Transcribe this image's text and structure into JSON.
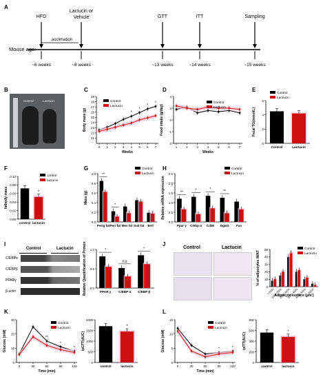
{
  "panel_letters": [
    "A",
    "B",
    "C",
    "D",
    "E",
    "F",
    "G",
    "H",
    "I",
    "J",
    "K",
    "L"
  ],
  "timeline": {
    "stages": [
      "HFD",
      "Lactucin or\nVehicle",
      "GTT",
      "ITT",
      "Sampling"
    ],
    "acclimation": "acclimation",
    "axis_label": "Mouse age:",
    "ages": [
      "~6 weeks",
      "~8 weeks",
      "~13 weeks",
      "~14 weeks",
      "~15 weeks"
    ]
  },
  "photo": {
    "labels": [
      "Control",
      "Lactucin"
    ]
  },
  "colors": {
    "control": "#000000",
    "lactucin": "#cc1111",
    "shade": "#f4c6dc"
  },
  "chart_data": [
    {
      "id": "C",
      "type": "line",
      "ylabel": "Body mass (g)",
      "xlabel": "Weeks",
      "x": [
        0,
        1,
        2,
        3,
        4,
        5,
        6,
        7
      ],
      "ylim": [
        20,
        29
      ],
      "yticks": [
        21,
        22,
        23,
        24,
        25,
        26,
        27,
        28,
        29
      ],
      "series": [
        {
          "name": "Control",
          "values": [
            22.6,
            23.1,
            23.8,
            24.6,
            25.2,
            25.9,
            26.6,
            27.1
          ]
        },
        {
          "name": "Lactucin",
          "values": [
            22.3,
            22.7,
            23.1,
            23.5,
            23.9,
            24.5,
            24.9,
            25.3
          ]
        }
      ],
      "legend": [
        "Control",
        "Lactucin"
      ],
      "stars": [
        "*",
        "*",
        "*",
        "*"
      ]
    },
    {
      "id": "D",
      "type": "line",
      "ylabel": "Food intake (g/day)",
      "xlabel": "Weeks",
      "x": [
        1,
        2,
        3,
        4,
        5,
        6,
        7
      ],
      "ylim": [
        0,
        4
      ],
      "yticks": [
        0,
        1,
        2,
        3,
        4
      ],
      "series": [
        {
          "name": "Control",
          "values": [
            2.9,
            3.1,
            2.6,
            2.8,
            2.7,
            2.8,
            2.6
          ]
        },
        {
          "name": "Lactucin",
          "values": [
            3.2,
            3.0,
            2.9,
            3.1,
            3.0,
            3.0,
            2.9
          ]
        }
      ],
      "legend": [
        "Control",
        "Lactucin"
      ]
    },
    {
      "id": "E",
      "type": "bar",
      "ylabel": "Fecal TG(mmol/L)",
      "categories": [
        "Control",
        "Lactucin"
      ],
      "values": [
        4.5,
        4.2
      ],
      "ylim": [
        0,
        6
      ],
      "yticks": [
        0,
        2,
        4,
        6
      ],
      "legend": [
        "Control",
        "Lactucin"
      ]
    },
    {
      "id": "F",
      "type": "bar",
      "ylabel": "fatbody mass",
      "categories": [
        "control",
        "lactucin"
      ],
      "values": [
        0.072,
        0.052
      ],
      "ylim": [
        0,
        0.1
      ],
      "yticks": [
        "0.00",
        "0.02",
        "0.04",
        "0.06",
        "0.08",
        "0.10"
      ],
      "legend": [
        "control",
        "lactucin"
      ],
      "stars": [
        "*"
      ]
    },
    {
      "id": "G",
      "type": "bar",
      "ylabel": "Mass (g)",
      "categories": [
        "Perig fat",
        "Peri fat",
        "Mes fat",
        "Sub fat",
        "BAT"
      ],
      "series": [
        {
          "name": "Control",
          "values": [
            0.85,
            0.22,
            0.32,
            0.45,
            0.19
          ]
        },
        {
          "name": "Lactucin",
          "values": [
            0.62,
            0.11,
            0.18,
            0.42,
            0.17
          ]
        }
      ],
      "ylim": [
        0,
        1.0
      ],
      "yticks": [
        "0.0",
        "0.2",
        "0.4",
        "0.6",
        "0.8",
        "1.0"
      ],
      "legend": [
        "Control",
        "Lactucin"
      ],
      "stars": [
        "**",
        "*"
      ]
    },
    {
      "id": "H",
      "type": "bar",
      "ylabel": "Relative mRNA expression",
      "categories": [
        "Ppar γ",
        "C/ebp α",
        "Cd36",
        "Dgat1",
        "Fas"
      ],
      "series": [
        {
          "name": "Control",
          "values": [
            1.2,
            1.3,
            1.35,
            1.25,
            1.05
          ]
        },
        {
          "name": "Lactucin",
          "values": [
            0.65,
            0.4,
            0.7,
            0.45,
            0.65
          ]
        }
      ],
      "ylim": [
        0,
        2.5
      ],
      "yticks": [
        "0.0",
        "0.5",
        "1.0",
        "1.5",
        "2.0",
        "2.5"
      ],
      "legend": [
        "Control",
        "Lactucin"
      ],
      "stars": [
        "**",
        "*",
        "*",
        "**"
      ]
    },
    {
      "id": "I",
      "type": "bar",
      "ylabel": "Relative Quantification of Protein",
      "categories": [
        "PPAR γ",
        "C/EBP α",
        "C/EBP β"
      ],
      "series": [
        {
          "name": "Control",
          "values": [
            0.82,
            0.52,
            0.85
          ]
        },
        {
          "name": "Lactucin",
          "values": [
            0.55,
            0.3,
            0.62
          ]
        }
      ],
      "ylim": [
        0,
        1.0
      ],
      "yticks": [
        "0.0",
        "0.5",
        "1.0"
      ],
      "stars": [
        "*",
        "n.s",
        "*"
      ]
    },
    {
      "id": "J",
      "type": "bar",
      "ylabel": "% of adipocytes iWAT",
      "xlabel": "Adipocyte surface (μm²)",
      "categories": [
        "<1000",
        "1000-2000",
        "2000-3000",
        "3000-4000",
        "4000-5000",
        ">5000"
      ],
      "series": [
        {
          "name": "Control",
          "values": [
            8,
            15,
            40,
            20,
            10,
            4
          ]
        },
        {
          "name": "Lactucin",
          "values": [
            10,
            20,
            45,
            22,
            12,
            2
          ]
        }
      ],
      "ylim": [
        0,
        50
      ],
      "yticks": [
        0,
        10,
        20,
        30,
        40,
        50
      ],
      "legend": [
        "Control",
        "Lactucin"
      ]
    },
    {
      "id": "K",
      "type": "line",
      "ylabel": "Glucose (mM)",
      "xlabel": "Time (min)",
      "x": [
        0,
        30,
        60,
        90,
        120
      ],
      "ylim": [
        0,
        30
      ],
      "yticks": [
        0,
        10,
        20,
        30
      ],
      "series": [
        {
          "name": "Control",
          "values": [
            6,
            25,
            15,
            11,
            8
          ]
        },
        {
          "name": "Lactucin",
          "values": [
            5.5,
            18,
            12,
            9,
            7
          ]
        }
      ],
      "legend": [
        "Control",
        "Lactucin"
      ],
      "stars": [
        "**",
        "*",
        "*"
      ]
    },
    {
      "id": "K2",
      "type": "bar",
      "ylabel": "ipGTT(AUC)",
      "categories": [
        "control",
        "lactucin"
      ],
      "values": [
        1700,
        1450
      ],
      "ylim": [
        0,
        2000
      ],
      "yticks": [
        0,
        500,
        1000,
        1500,
        2000
      ],
      "stars": [
        "*"
      ]
    },
    {
      "id": "L",
      "type": "line",
      "ylabel": "Glucose (mM)",
      "xlabel": "Time (min)",
      "x": [
        0,
        30,
        60,
        90,
        120
      ],
      "ylim": [
        0,
        15
      ],
      "yticks": [
        0,
        5,
        10,
        15
      ],
      "series": [
        {
          "name": "Control",
          "values": [
            12,
            6,
            3,
            3.5,
            4
          ]
        },
        {
          "name": "Lactucin",
          "values": [
            11,
            4,
            2,
            3,
            3.5
          ]
        }
      ],
      "legend": [
        "Control",
        "Lactucin"
      ],
      "stars": [
        "*",
        "*"
      ]
    },
    {
      "id": "L2",
      "type": "bar",
      "ylabel": "ipITT(AUC)",
      "categories": [
        "control",
        "lactucin"
      ],
      "values": [
        560,
        480
      ],
      "ylim": [
        0,
        800
      ],
      "yticks": [
        0,
        200,
        400,
        600,
        800
      ],
      "stars": [
        "*"
      ]
    }
  ],
  "western": {
    "groups": [
      "Control",
      "Lactucin"
    ],
    "bands": [
      "C/EBPα",
      "C/EBPβ",
      "PPARγ",
      "β-actin"
    ]
  },
  "histology": {
    "labels": [
      "Control",
      "Lactucin"
    ]
  }
}
